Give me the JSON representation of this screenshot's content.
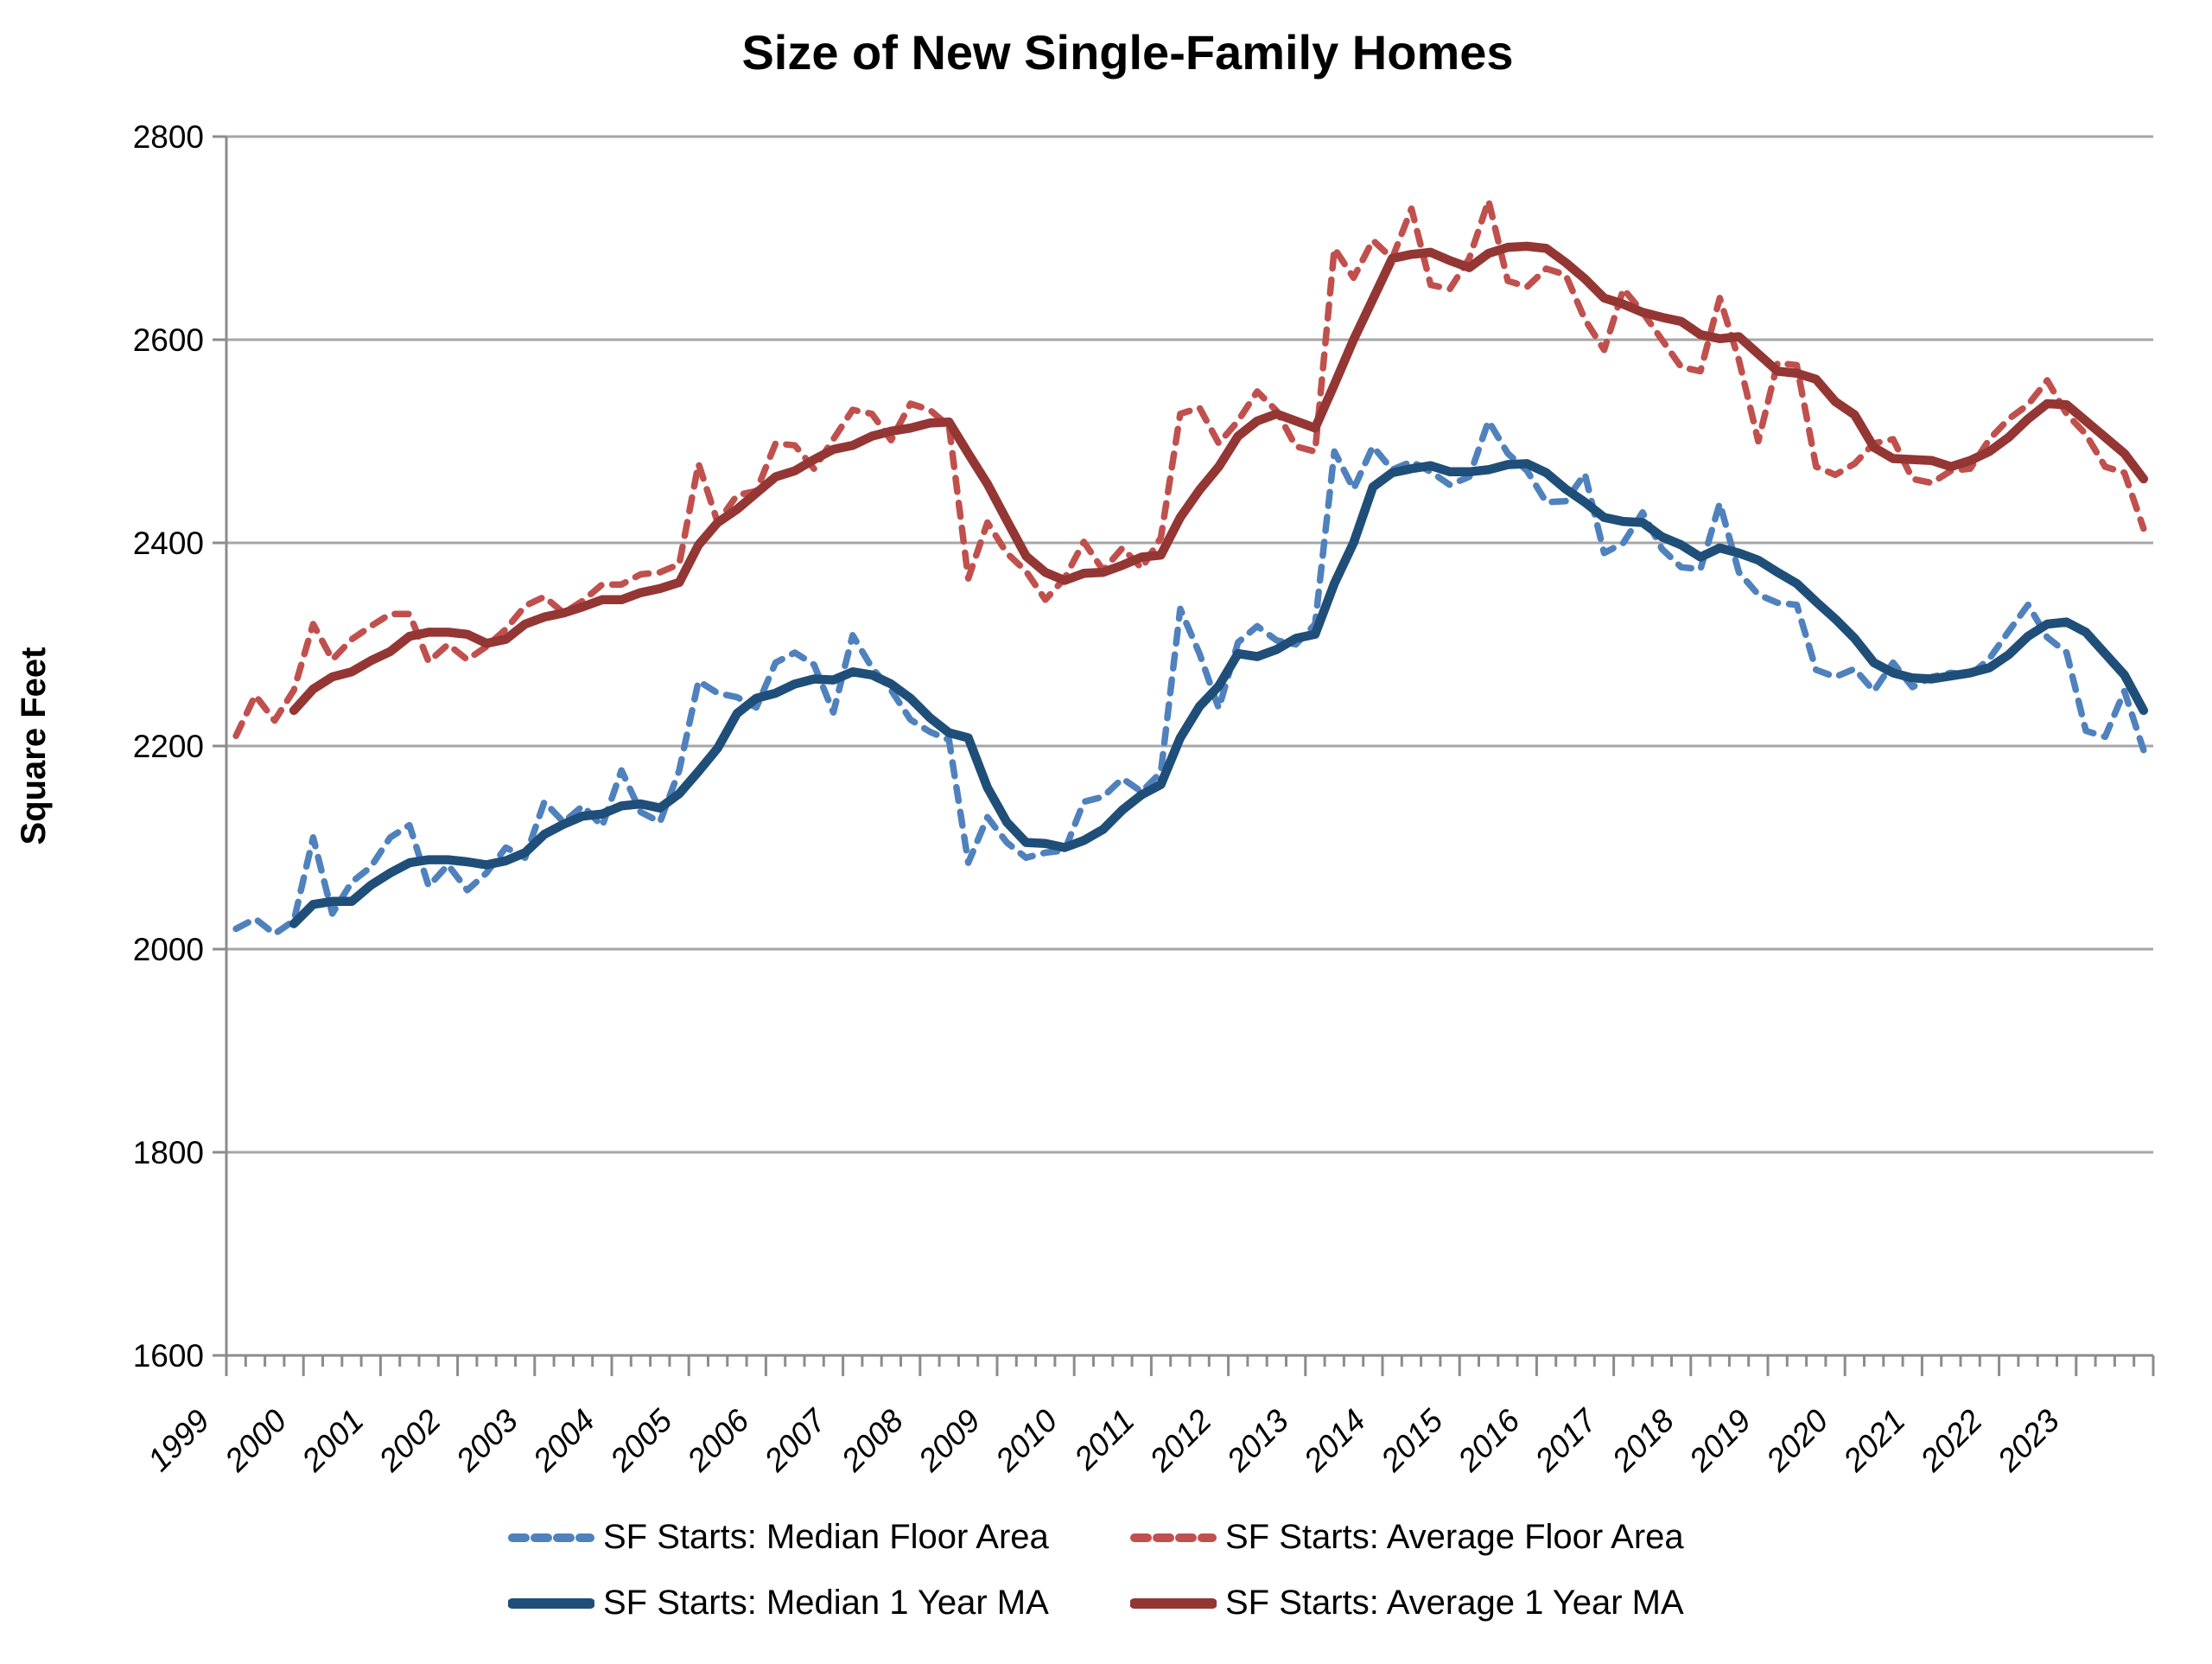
{
  "chart_data": {
    "type": "line",
    "title": "Size of New Single-Family Homes",
    "ylabel": "Square Feet",
    "y_axis": {
      "min": 1600,
      "max": 2800,
      "step": 200,
      "gridlines": true
    },
    "x_axis": {
      "years": [
        "1999",
        "2000",
        "2001",
        "2002",
        "2003",
        "2004",
        "2005",
        "2006",
        "2007",
        "2008",
        "2009",
        "2010",
        "2011",
        "2012",
        "2013",
        "2014",
        "2015",
        "2016",
        "2017",
        "2018",
        "2019",
        "2020",
        "2021",
        "2022",
        "2023"
      ],
      "points_per_year": 4,
      "frequency": "quarterly"
    },
    "legend_position": "bottom",
    "colors": {
      "median_dashed": "#4F81BD",
      "average_dashed": "#C0504D",
      "median_solid": "#1F4E79",
      "average_solid": "#943634",
      "gridline": "#A6A6A6",
      "axis": "#8C8C8C"
    },
    "series": [
      {
        "name": "SF Starts: Median Floor Area",
        "style": "dashed",
        "color": "#4F81BD",
        "values": [
          2020,
          2030,
          2015,
          2028,
          2110,
          2035,
          2066,
          2081,
          2110,
          2122,
          2062,
          2083,
          2058,
          2075,
          2100,
          2090,
          2145,
          2125,
          2141,
          2121,
          2176,
          2135,
          2125,
          2176,
          2264,
          2252,
          2248,
          2238,
          2282,
          2292,
          2280,
          2233,
          2309,
          2277,
          2255,
          2226,
          2214,
          2206,
          2085,
          2130,
          2105,
          2090,
          2095,
          2097,
          2145,
          2150,
          2168,
          2155,
          2174,
          2335,
          2291,
          2237,
          2302,
          2318,
          2304,
          2300,
          2320,
          2490,
          2453,
          2495,
          2472,
          2480,
          2470,
          2457,
          2465,
          2520,
          2488,
          2471,
          2440,
          2441,
          2468,
          2390,
          2400,
          2430,
          2394,
          2376,
          2374,
          2439,
          2371,
          2349,
          2341,
          2339,
          2275,
          2268,
          2276,
          2254,
          2282,
          2258,
          2268,
          2272,
          2270,
          2286,
          2313,
          2339,
          2307,
          2292,
          2215,
          2209,
          2254,
          2196
        ]
      },
      {
        "name": "SF Starts: Average Floor Area",
        "style": "dashed",
        "color": "#C0504D",
        "values": [
          2210,
          2250,
          2225,
          2255,
          2320,
          2285,
          2305,
          2318,
          2330,
          2330,
          2283,
          2300,
          2285,
          2298,
          2315,
          2338,
          2347,
          2331,
          2343,
          2359,
          2359,
          2369,
          2371,
          2379,
          2478,
          2420,
          2447,
          2451,
          2498,
          2496,
          2473,
          2502,
          2531,
          2527,
          2501,
          2537,
          2531,
          2515,
          2365,
          2420,
          2390,
          2372,
          2344,
          2365,
          2401,
          2373,
          2395,
          2375,
          2405,
          2527,
          2533,
          2498,
          2520,
          2549,
          2530,
          2495,
          2490,
          2690,
          2661,
          2698,
          2680,
          2729,
          2654,
          2650,
          2680,
          2737,
          2658,
          2652,
          2670,
          2664,
          2620,
          2590,
          2650,
          2627,
          2600,
          2573,
          2569,
          2641,
          2580,
          2500,
          2577,
          2575,
          2475,
          2467,
          2478,
          2498,
          2502,
          2463,
          2459,
          2471,
          2473,
          2502,
          2522,
          2536,
          2560,
          2527,
          2507,
          2475,
          2469,
          2414
        ]
      },
      {
        "name": "SF Starts: Median 1 Year MA",
        "style": "solid",
        "color": "#1F4E79",
        "values": [
          null,
          null,
          null,
          2025,
          2044,
          2047,
          2047,
          2063,
          2075,
          2085,
          2088,
          2088,
          2086,
          2083,
          2087,
          2095,
          2113,
          2123,
          2131,
          2133,
          2141,
          2143,
          2139,
          2153,
          2175,
          2198,
          2232,
          2247,
          2252,
          2261,
          2266,
          2265,
          2273,
          2270,
          2261,
          2247,
          2228,
          2213,
          2208,
          2159,
          2125,
          2105,
          2104,
          2100,
          2107,
          2118,
          2137,
          2152,
          2162,
          2208,
          2239,
          2259,
          2291,
          2288,
          2295,
          2306,
          2310,
          2360,
          2400,
          2455,
          2469,
          2473,
          2476,
          2470,
          2470,
          2472,
          2477,
          2478,
          2469,
          2453,
          2440,
          2425,
          2421,
          2420,
          2406,
          2398,
          2386,
          2395,
          2390,
          2383,
          2371,
          2360,
          2342,
          2325,
          2306,
          2282,
          2272,
          2267,
          2266,
          2269,
          2272,
          2277,
          2290,
          2308,
          2320,
          2322,
          2312,
          2291,
          2270,
          2235
        ]
      },
      {
        "name": "SF Starts: Average 1 Year MA",
        "style": "solid",
        "color": "#943634",
        "values": [
          null,
          null,
          null,
          2235,
          2256,
          2268,
          2273,
          2284,
          2293,
          2308,
          2312,
          2312,
          2310,
          2301,
          2305,
          2320,
          2327,
          2331,
          2337,
          2344,
          2344,
          2351,
          2355,
          2361,
          2398,
          2420,
          2433,
          2449,
          2465,
          2471,
          2482,
          2492,
          2496,
          2505,
          2510,
          2513,
          2518,
          2519,
          2488,
          2458,
          2422,
          2387,
          2371,
          2363,
          2370,
          2371,
          2378,
          2386,
          2388,
          2425,
          2452,
          2475,
          2505,
          2520,
          2527,
          2520,
          2513,
          2556,
          2600,
          2640,
          2680,
          2684,
          2686,
          2678,
          2671,
          2685,
          2691,
          2692,
          2690,
          2676,
          2660,
          2641,
          2635,
          2627,
          2622,
          2618,
          2605,
          2601,
          2603,
          2586,
          2569,
          2567,
          2561,
          2539,
          2526,
          2494,
          2483,
          2482,
          2481,
          2475,
          2481,
          2490,
          2504,
          2522,
          2537,
          2536,
          2520,
          2504,
          2488,
          2463
        ]
      }
    ]
  }
}
